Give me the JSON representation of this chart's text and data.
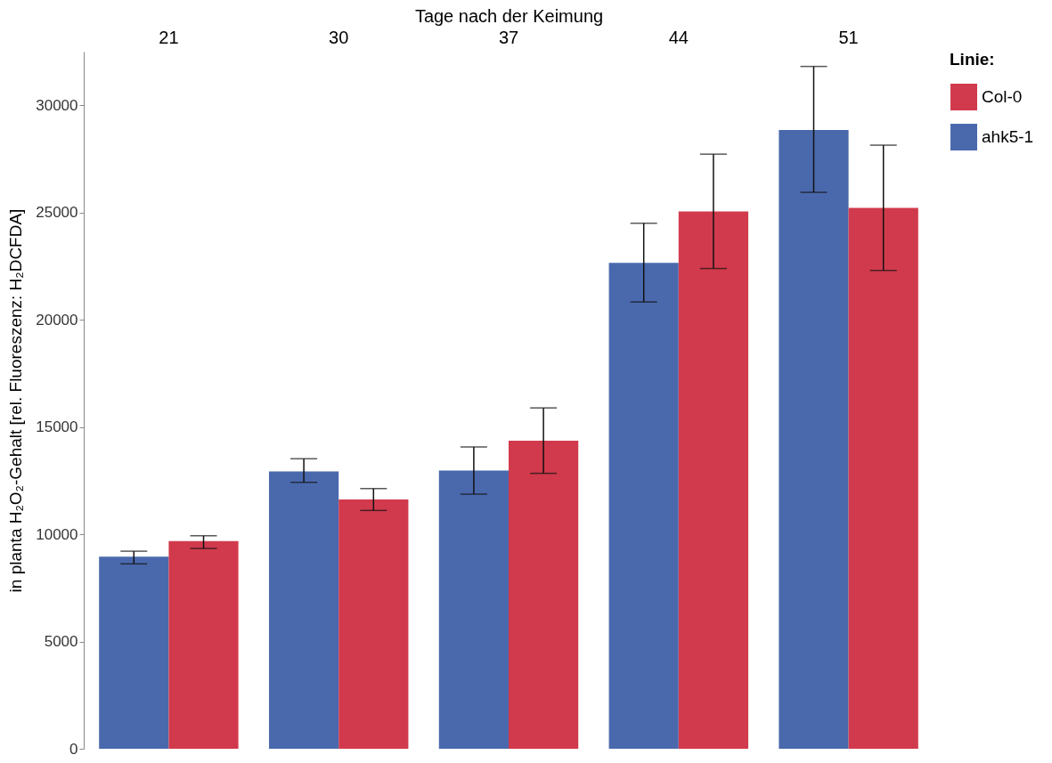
{
  "chart_data": {
    "type": "bar",
    "xlabel": "Tage nach der Keimung",
    "ylabel": "in planta H₂O₂-Gehalt [rel. Fluoreszenz: H₂DCFDA]",
    "legend_title": "Linie:",
    "legend": "top right",
    "grid": false,
    "categories": [
      "21",
      "30",
      "37",
      "44",
      "51"
    ],
    "ylim": [
      0,
      32500
    ],
    "yticks": [
      0,
      5000,
      10000,
      15000,
      20000,
      25000,
      30000
    ],
    "series": [
      {
        "name": "ahk5-1",
        "color": "#4a69ad",
        "values": [
          8950,
          12930,
          12970,
          22650,
          28850
        ],
        "errors": [
          [
            8620,
            9210
          ],
          [
            12420,
            13520
          ],
          [
            11870,
            14070
          ],
          [
            20830,
            24500
          ],
          [
            25940,
            31810
          ]
        ]
      },
      {
        "name": "Col-0",
        "color": "#d13a4c",
        "values": [
          9680,
          11620,
          14360,
          25050,
          25220
        ],
        "errors": [
          [
            9340,
            9930
          ],
          [
            11110,
            12130
          ],
          [
            12840,
            15890
          ],
          [
            22390,
            27720
          ],
          [
            22300,
            28140
          ]
        ]
      }
    ]
  }
}
